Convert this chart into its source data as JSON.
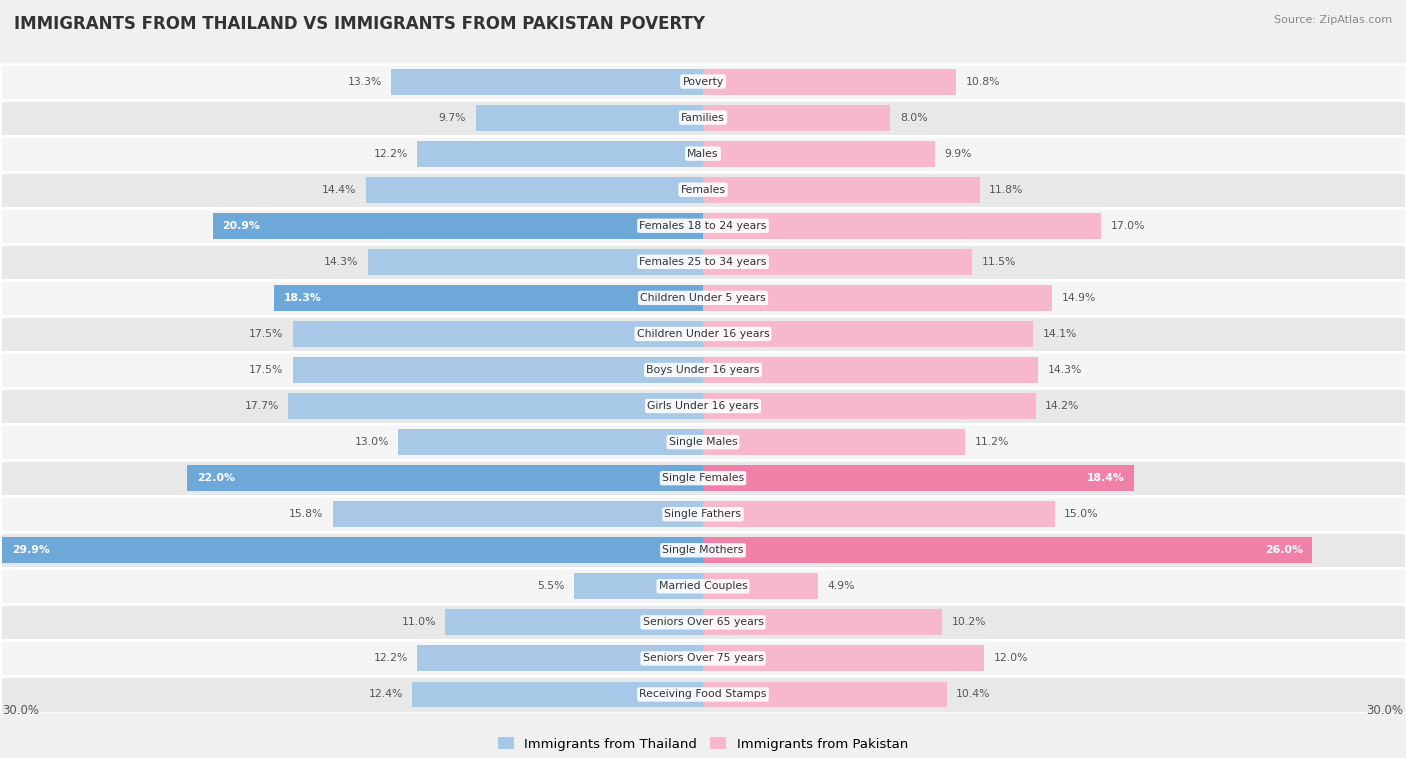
{
  "title": "IMMIGRANTS FROM THAILAND VS IMMIGRANTS FROM PAKISTAN POVERTY",
  "source": "Source: ZipAtlas.com",
  "categories": [
    "Poverty",
    "Families",
    "Males",
    "Females",
    "Females 18 to 24 years",
    "Females 25 to 34 years",
    "Children Under 5 years",
    "Children Under 16 years",
    "Boys Under 16 years",
    "Girls Under 16 years",
    "Single Males",
    "Single Females",
    "Single Fathers",
    "Single Mothers",
    "Married Couples",
    "Seniors Over 65 years",
    "Seniors Over 75 years",
    "Receiving Food Stamps"
  ],
  "thailand_values": [
    13.3,
    9.7,
    12.2,
    14.4,
    20.9,
    14.3,
    18.3,
    17.5,
    17.5,
    17.7,
    13.0,
    22.0,
    15.8,
    29.9,
    5.5,
    11.0,
    12.2,
    12.4
  ],
  "pakistan_values": [
    10.8,
    8.0,
    9.9,
    11.8,
    17.0,
    11.5,
    14.9,
    14.1,
    14.3,
    14.2,
    11.2,
    18.4,
    15.0,
    26.0,
    4.9,
    10.2,
    12.0,
    10.4
  ],
  "thailand_color_normal": "#a8c8e8",
  "thailand_color_highlight": "#6ea8d8",
  "pakistan_color_normal": "#f8b8cc",
  "pakistan_color_highlight": "#f080a8",
  "thailand_label": "Immigrants from Thailand",
  "pakistan_label": "Immigrants from Pakistan",
  "max_value": 30.0,
  "background_color": "#f0f0f0",
  "row_bg_even": "#f5f5f5",
  "row_bg_odd": "#e8e8e8",
  "highlight_th_thailand": 18.0,
  "highlight_th_pakistan": 18.0
}
